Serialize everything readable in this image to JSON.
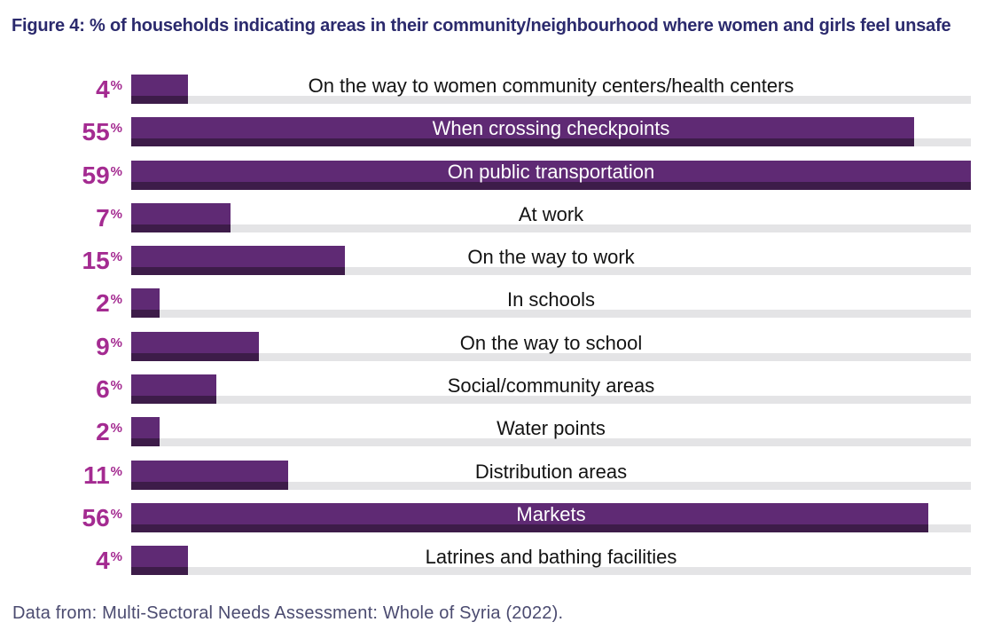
{
  "colors": {
    "background": "#ffffff",
    "title_text": "#2b2a6d",
    "bar_fill": "#5f2a74",
    "bar_edge": "#3d1c49",
    "track": "#e4e4e6",
    "value_text": "#a42b91",
    "category_text": "#131313",
    "category_text_inside": "#ffffff",
    "source_text": "#4b4b70"
  },
  "chart_data": {
    "type": "bar",
    "orientation": "horizontal",
    "title": "Figure 4: % of households indicating areas in their community/neighbourhood where women and girls feel unsafe",
    "categories": [
      "On the way to women community centers/health centers",
      "When crossing checkpoints",
      "On public transportation",
      "At work",
      "On the way to work",
      "In schools",
      "On the way to school",
      "Social/community areas",
      "Water points",
      "Distribution areas",
      "Markets",
      "Latrines and bathing facilities"
    ],
    "values": [
      4,
      55,
      59,
      7,
      15,
      2,
      9,
      6,
      2,
      11,
      56,
      4
    ],
    "value_suffix": "%",
    "xlim": [
      0,
      59
    ],
    "grid": false,
    "legend": "none",
    "value_label_position": "left",
    "category_label_position": "centered-on-track",
    "source": "Data from: Multi-Sectoral Needs Assessment: Whole of Syria (2022)."
  }
}
